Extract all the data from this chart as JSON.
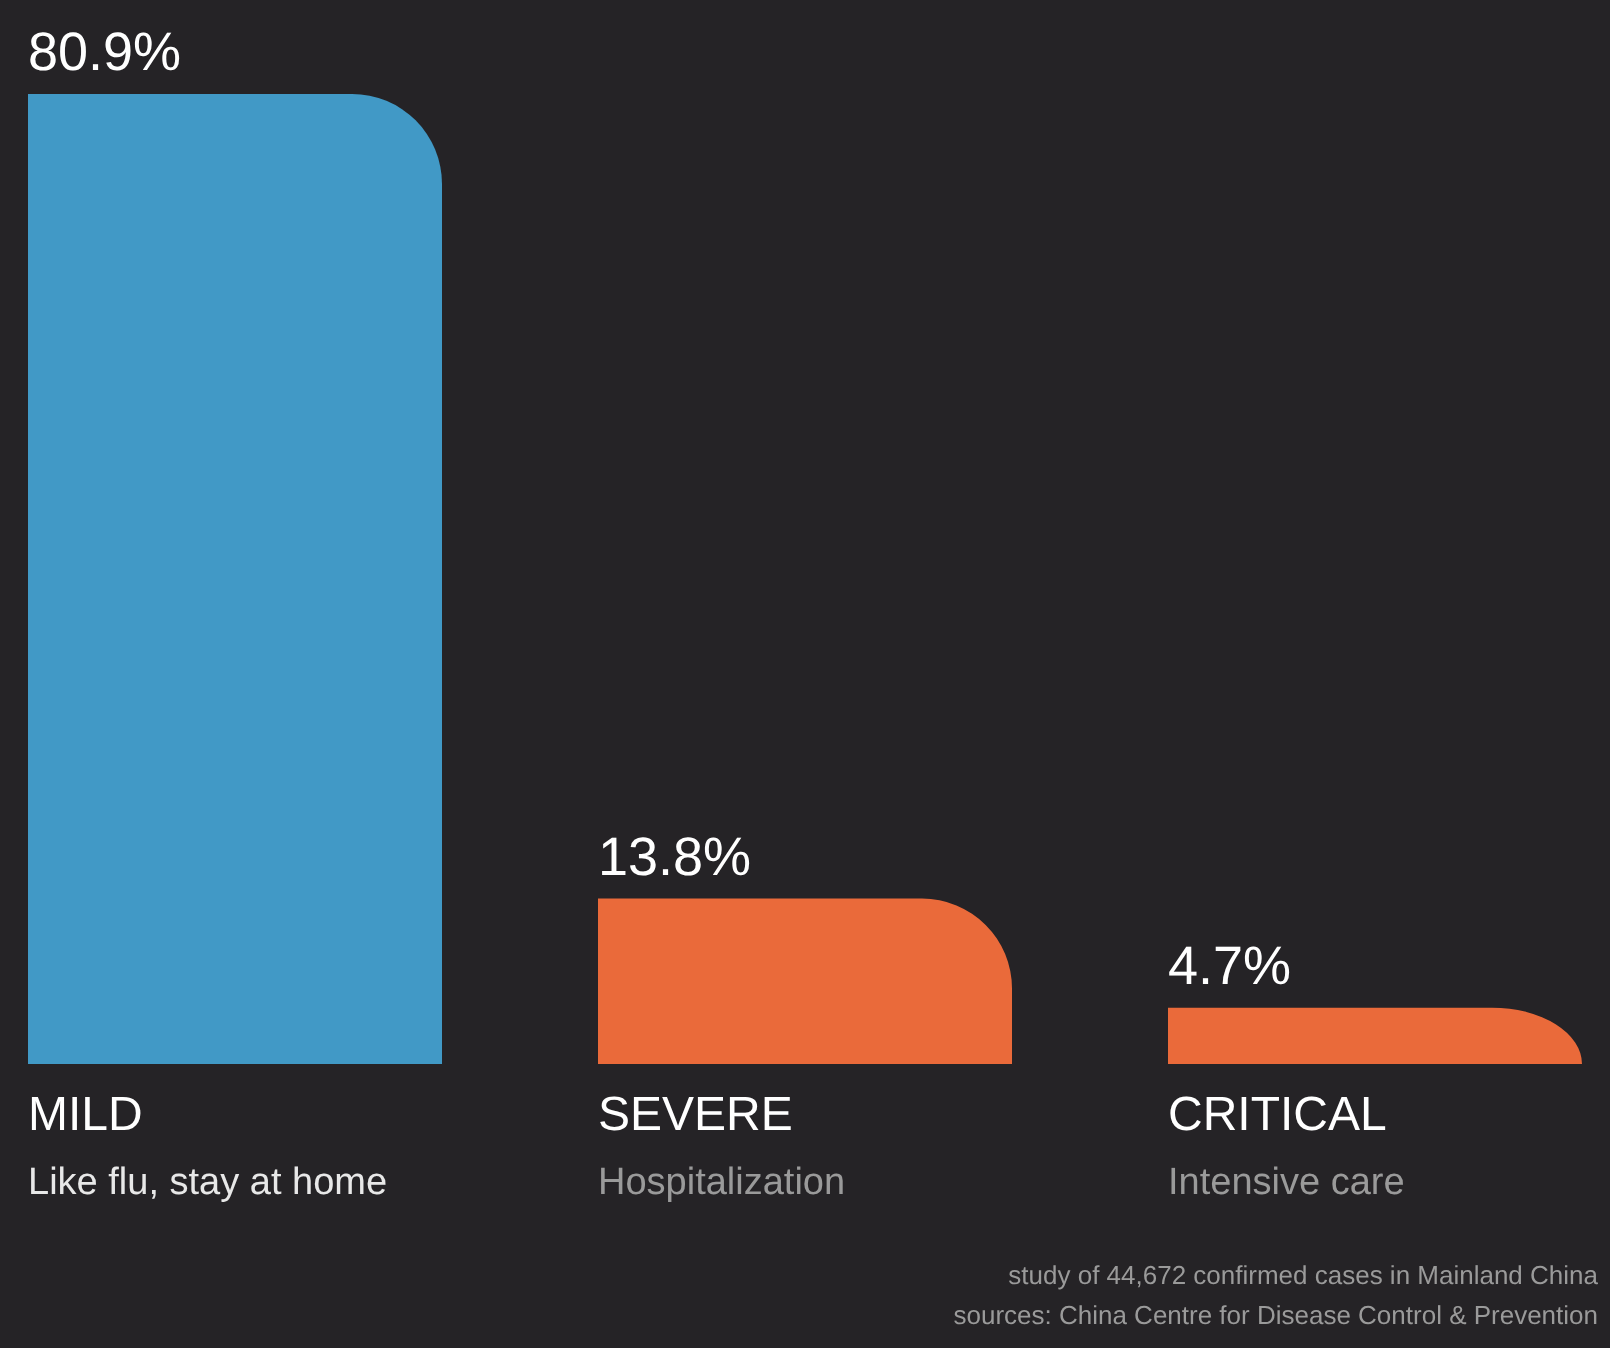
{
  "chart_data": {
    "type": "bar",
    "categories": [
      "MILD\nLike flu, stay at home",
      "SEVERE\nHospitalization",
      "CRITICAL\nIntensive care"
    ],
    "values": [
      80.9,
      13.8,
      4.7
    ],
    "colors": [
      "#4199c6",
      "#ea6a3a",
      "#ea6a3a"
    ],
    "value_labels": [
      "80.9%",
      "13.8%",
      "4.7%"
    ],
    "grid": false,
    "annotations": [
      "study of 44,672 confirmed cases in Mainland China",
      "sources: China Centre for Disease Control & Prevention"
    ]
  }
}
